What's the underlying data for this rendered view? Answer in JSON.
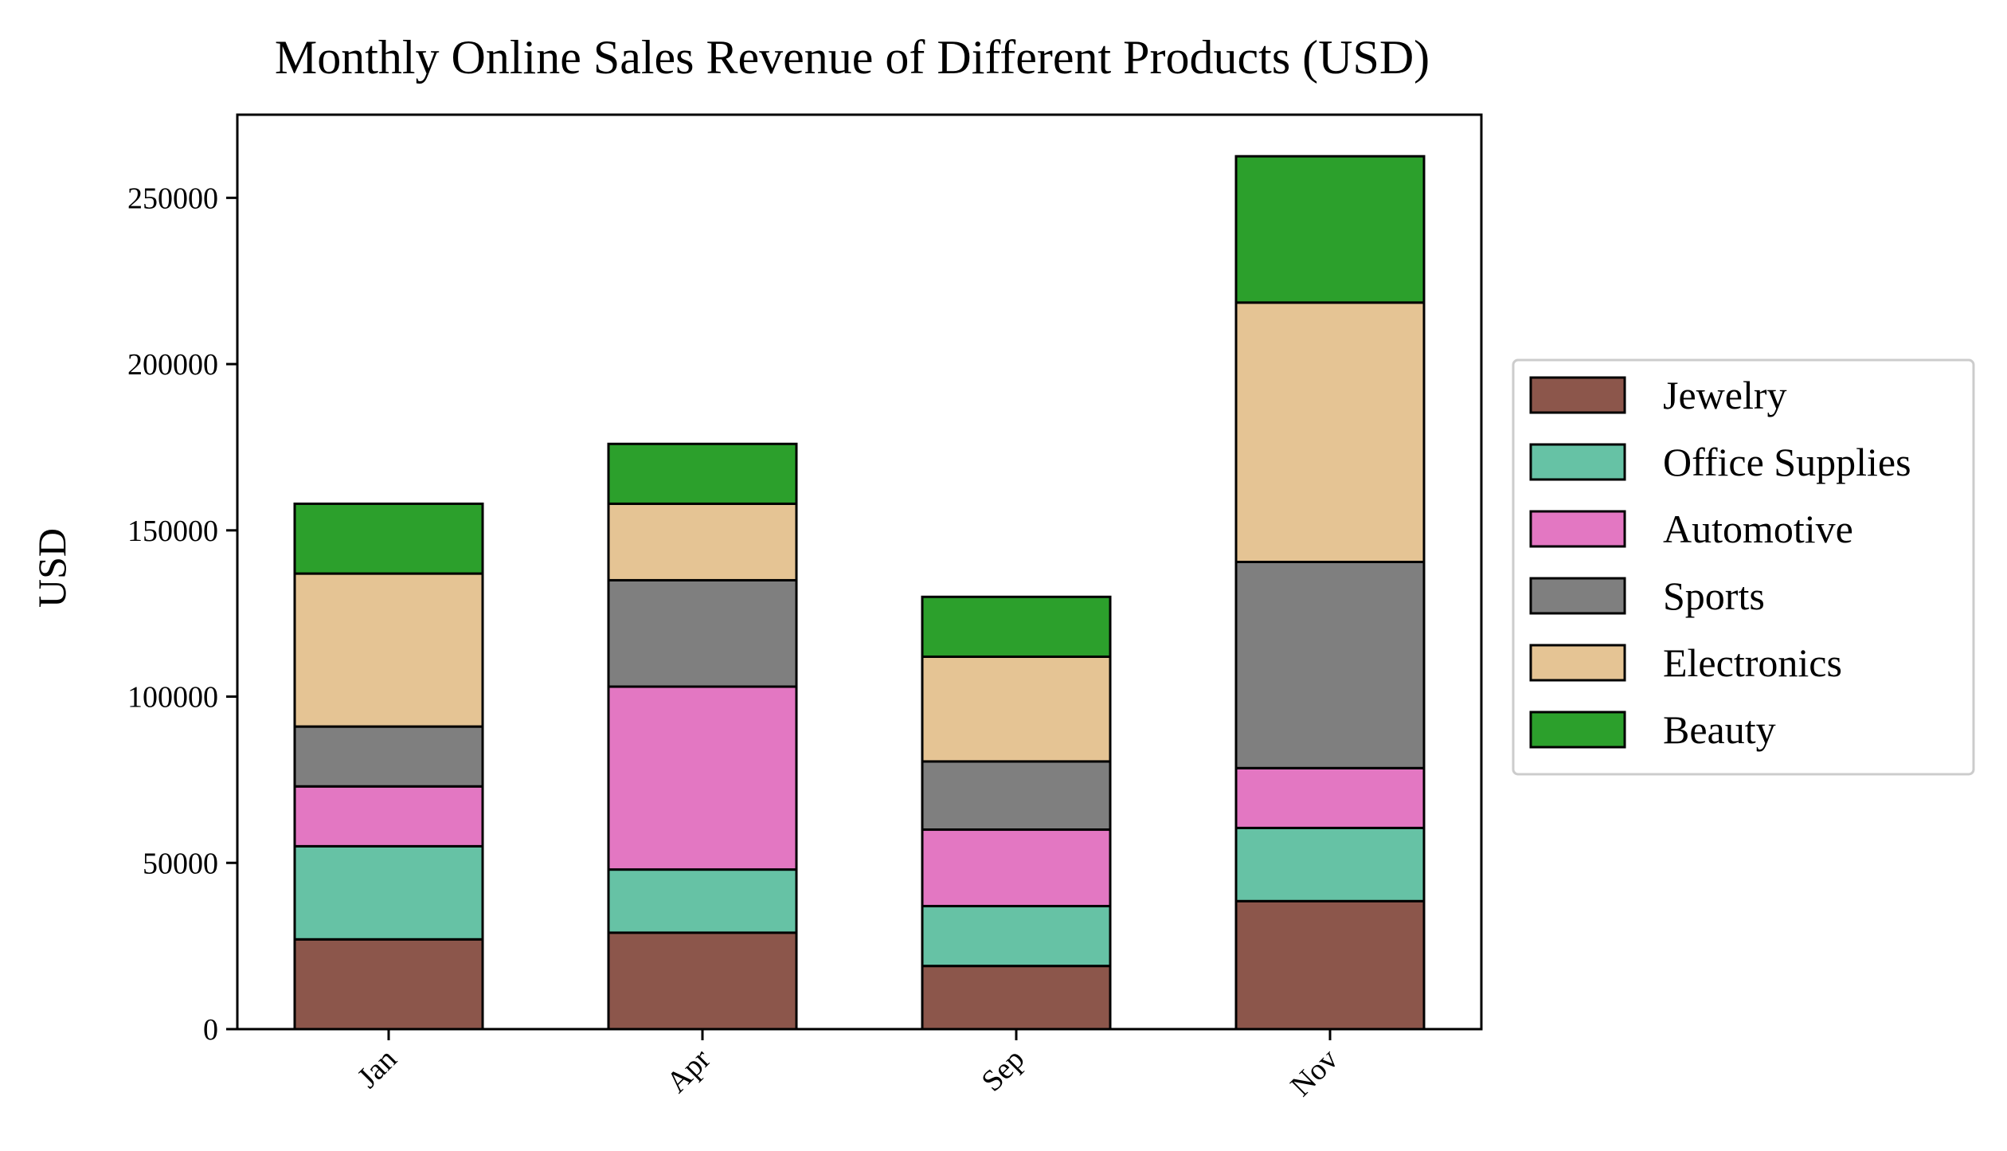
{
  "chart_data": {
    "type": "bar",
    "stacked": true,
    "title": "Monthly Online Sales Revenue of Different Products (USD)",
    "xlabel": "",
    "ylabel": "USD",
    "categories": [
      "Jan",
      "Apr",
      "Sep",
      "Nov"
    ],
    "ylim": [
      0,
      275000
    ],
    "yticks": [
      0,
      50000,
      100000,
      150000,
      200000,
      250000
    ],
    "ytick_labels": [
      "0",
      "50000",
      "100000",
      "150000",
      "200000",
      "250000"
    ],
    "legend_position": "right",
    "grid": false,
    "series": [
      {
        "name": "Jewelry",
        "color": "#8c564b",
        "values": [
          27000,
          29000,
          19000,
          38500
        ]
      },
      {
        "name": "Office Supplies",
        "color": "#66c2a5",
        "values": [
          28000,
          19000,
          18000,
          22000
        ]
      },
      {
        "name": "Automotive",
        "color": "#e377c2",
        "values": [
          18000,
          55000,
          23000,
          18000
        ]
      },
      {
        "name": "Sports",
        "color": "#7f7f7f",
        "values": [
          18000,
          32000,
          20500,
          62000
        ]
      },
      {
        "name": "Electronics",
        "color": "#e5c494",
        "values": [
          46000,
          23000,
          31500,
          78000
        ]
      },
      {
        "name": "Beauty",
        "color": "#2ca02c",
        "values": [
          21000,
          18000,
          18000,
          44000
        ]
      }
    ]
  }
}
